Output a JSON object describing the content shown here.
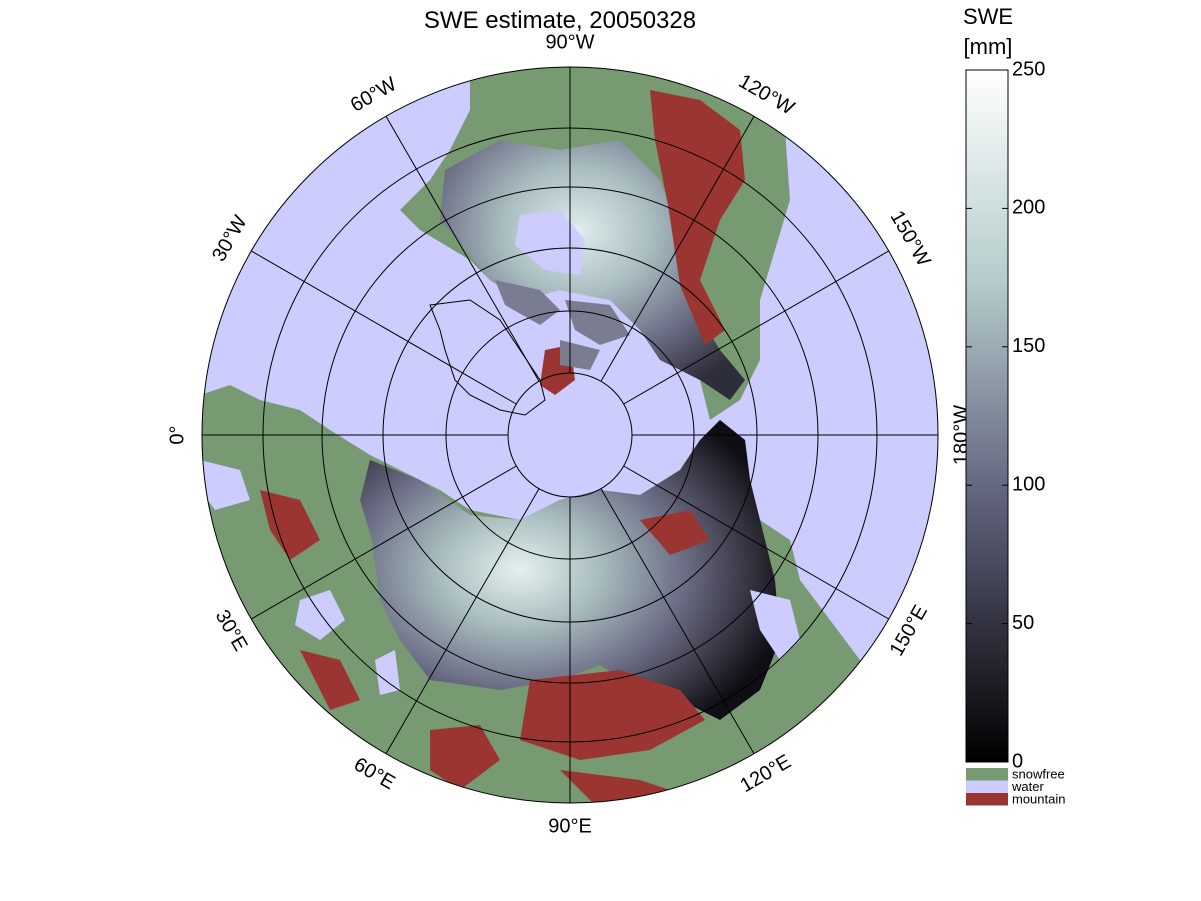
{
  "map": {
    "title": "SWE estimate, 20050328",
    "longitude_labels": [
      "90°W",
      "120°W",
      "150°W",
      "180°W",
      "150°E",
      "120°E",
      "90°E",
      "60°E",
      "30°E",
      "0°",
      "30°W",
      "60°W"
    ],
    "colorbar": {
      "label": [
        "SWE",
        "[mm]"
      ],
      "lim": [
        0,
        250
      ],
      "ticks": [
        0,
        50,
        100,
        150,
        200,
        250
      ]
    },
    "legend": [
      {
        "name": "snowfree",
        "color": "#789a72"
      },
      {
        "name": "water",
        "color": "#ccccff"
      },
      {
        "name": "mountain",
        "color": "#9b3531"
      }
    ]
  }
}
